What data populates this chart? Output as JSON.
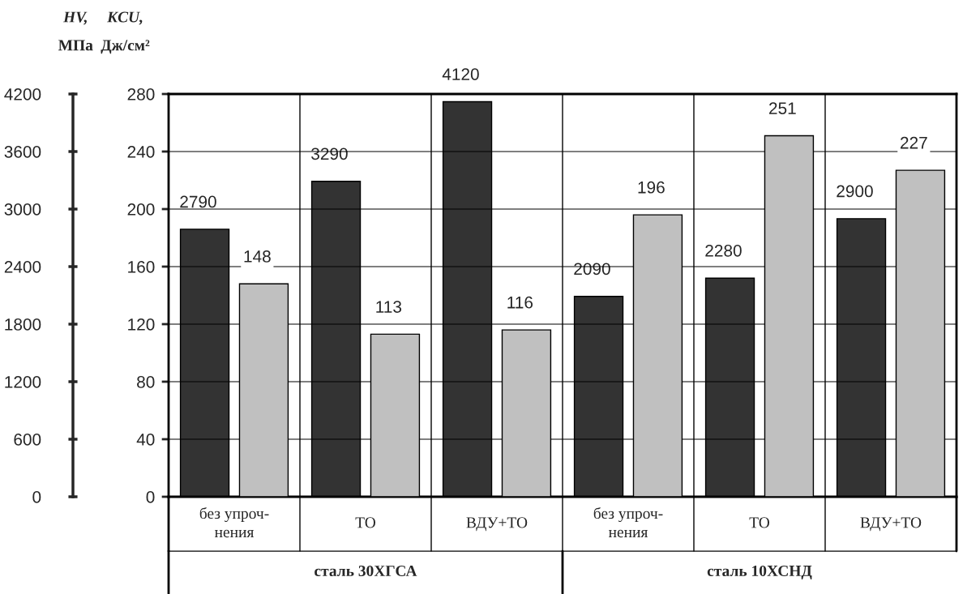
{
  "chart_data": {
    "type": "bar",
    "categories": [
      "без упроч-\nнения",
      "ТО",
      "ВДУ+ТО",
      "без упроч-\nнения",
      "ТО",
      "ВДУ+ТО"
    ],
    "series": [
      {
        "color": "#333333",
        "values": [
          2790,
          3290,
          4120,
          2090,
          2280,
          2900
        ]
      },
      {
        "color": "#c0c0c0",
        "values": [
          148,
          113,
          116,
          196,
          251,
          227
        ],
        "axis": "y2"
      }
    ],
    "ylabel": "HV,\nМПа",
    "ylim": [
      0,
      4200
    ],
    "yticks": [
      0,
      600,
      1200,
      1800,
      2400,
      3000,
      3600,
      4200
    ],
    "y2label": "KCU,\nДж/см²",
    "y2lim": [
      0,
      280
    ],
    "y2ticks": [
      0,
      40,
      80,
      120,
      160,
      200,
      240,
      280
    ],
    "annotations": [
      "сталь 30ХГСА",
      "сталь 10ХСНД"
    ],
    "data_labels": true,
    "grid": "y",
    "legend": false
  }
}
